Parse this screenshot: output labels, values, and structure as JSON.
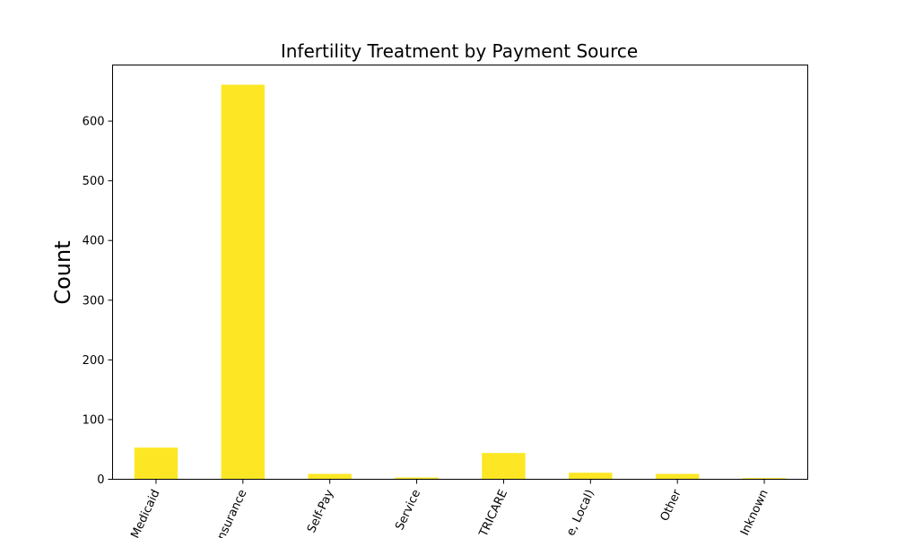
{
  "chart_data": {
    "type": "bar",
    "title": "Infertility Treatment by Payment Source",
    "xlabel": "",
    "ylabel": "Count",
    "categories": [
      "Medicaid",
      "Private Insurance",
      "Self-Pay",
      "Indian Health Service",
      "CHAMPUS/TRICARE",
      "Other Government (Federal, State, Local)",
      "Other",
      "Unknown"
    ],
    "visible_tick_labels": [
      "Medicaid",
      "nsurance",
      "Self-Pay",
      "Service",
      "TRICARE",
      "e, Local)",
      "Other",
      "Inknown"
    ],
    "values": [
      53,
      661,
      9,
      3,
      44,
      11,
      9,
      2
    ],
    "ylim": [
      0,
      694
    ],
    "yticks": [
      0,
      100,
      200,
      300,
      400,
      500,
      600
    ],
    "grid": false,
    "bar_color": "#FDE725"
  }
}
